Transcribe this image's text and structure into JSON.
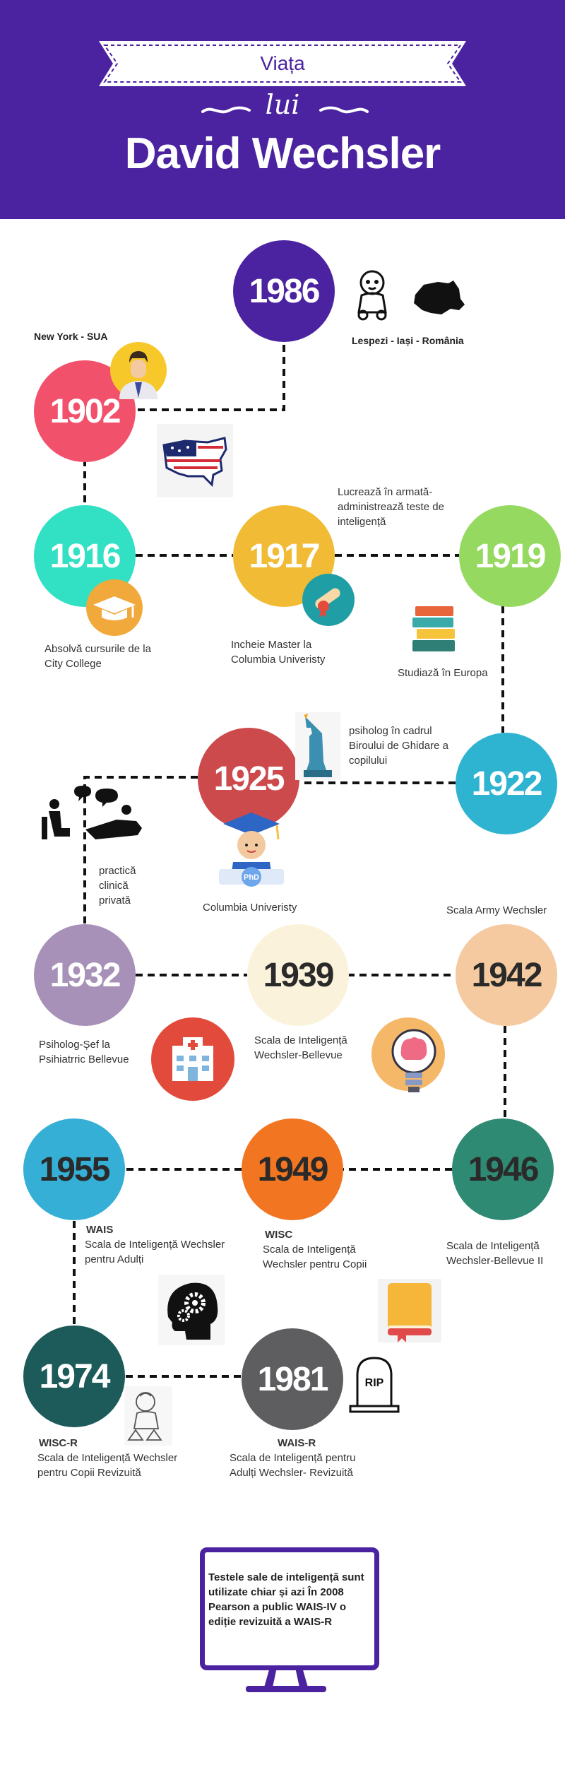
{
  "header": {
    "line1": "Viața",
    "line2": "lui",
    "line3": "David Wechsler",
    "color": "#4b23a0"
  },
  "years": {
    "y1986": "1986",
    "y1902": "1902",
    "y1916": "1916",
    "y1917": "1917",
    "y1919": "1919",
    "y1922": "1922",
    "y1925": "1925",
    "y1932": "1932",
    "y1939": "1939",
    "y1942": "1942",
    "y1955": "1955",
    "y1949": "1949",
    "y1946": "1946",
    "y1974": "1974",
    "y1981": "1981"
  },
  "labels": {
    "birthplace": "Lespezi - Iași - România",
    "newyork": "New York - SUA",
    "army": "Lucrează în armată-administrează teste de inteligență",
    "city_college": "Absolvă cursurile de la City College",
    "master": "Incheie Master la Columbia Univeristy",
    "europe": "Studiază în Europa",
    "psiholog": "psiholog în cadrul Biroului de Ghidare a copilului",
    "practica": "practică clinică privată",
    "phd": "Columbia Univeristy",
    "army_scale": "Scala Army Wechsler",
    "bellevue_chief": "Psiholog-Șef la Psihiatrric Bellevue",
    "wb_scale": "Scala de Inteligență Wechsler-Bellevue",
    "wais_title": "WAIS",
    "wais_desc": "Scala de Inteligență Wechsler pentru Adulți",
    "wisc_title": "WISC",
    "wisc_desc": "Scala de Inteligență Wechsler pentru Copii",
    "wb2": "Scala de Inteligență Wechsler-Bellevue II",
    "wiscr_title": "WISC-R",
    "wiscr_desc": "Scala de Inteligență Wechsler pentru Copii Revizuită",
    "waisr_title": "WAIS-R",
    "waisr_desc": "Scala de Inteligență pentru Adulți Wechsler- Revizuită",
    "phd_badge": "PhD",
    "rip": "RIP"
  },
  "monitor": {
    "text": "Testele sale de inteligență sunt utilizate chiar și azi În 2008 Pearson a public WAIS-IV o ediție revizuită a WAIS-R"
  },
  "colors": {
    "c1986": "#4b23a0",
    "c1902": "#f2516b",
    "c1916": "#32e0c4",
    "c1917": "#f2bb36",
    "c1919": "#96d960",
    "c1922": "#2eb3d0",
    "c1925": "#cd4a4c",
    "c1932": "#a891b8",
    "c1939": "#fbf2dc",
    "c1942": "#f5caa0",
    "c1955": "#36afd6",
    "c1949": "#f27521",
    "c1946": "#2f8a73",
    "c1974": "#1d5a5a",
    "c1981": "#5e5e60"
  },
  "icons": [
    "baby-icon",
    "romania-map-icon",
    "businessman-icon",
    "usa-map-icon",
    "graduation-cap-icon",
    "diploma-icon",
    "books-icon",
    "statue-of-liberty-icon",
    "therapy-icon",
    "phd-student-icon",
    "hospital-icon",
    "brain-bulb-icon",
    "gears-head-icon",
    "book-icon",
    "child-icon",
    "tombstone-icon",
    "monitor-icon"
  ]
}
